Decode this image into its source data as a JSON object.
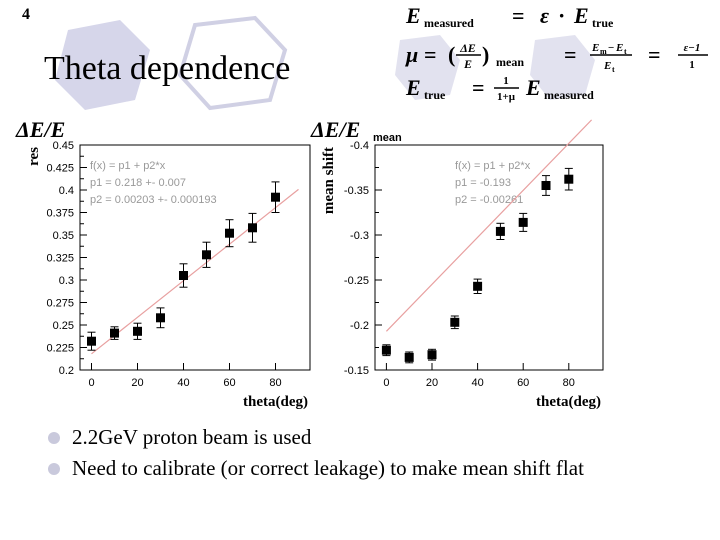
{
  "slide_number": "4",
  "title": "Theta dependence",
  "formulas": {
    "line1": {
      "lhs": "E",
      "lhs_sub": "measured",
      "eq": "=",
      "eps": "ε",
      "dot": "·",
      "rhs": "E",
      "rhs_sub": "true"
    },
    "line2": {
      "mu": "μ",
      "eq": "=",
      "paren_open": "(",
      "frac_num": "ΔE",
      "frac_den": "E",
      "paren_close": ")",
      "sub_mean": "mean",
      "eq2": "=",
      "frac2_num": "E",
      "frac2_num_sub1": "m",
      "frac2_minus": "−",
      "frac2_num2": "E",
      "frac2_num_sub2": "t",
      "frac2_den": "E",
      "frac2_den_sub": "t",
      "eq3": "=",
      "frac3_num": "ε−1",
      "frac3_den": "1"
    },
    "line3": {
      "lhs": "E",
      "lhs_sub": "true",
      "eq": "=",
      "frac_num": "1",
      "frac_den": "1+μ",
      "rhs": "E",
      "rhs_sub": "measured"
    }
  },
  "chart_data": [
    {
      "type": "scatter",
      "title": "ΔE/E",
      "title_sub": "",
      "xlabel": "theta(deg)",
      "ylabel": "res",
      "xlim": [
        -5,
        95
      ],
      "ylim": [
        0.2,
        0.45
      ],
      "xticks": [
        "0",
        "20",
        "40",
        "60",
        "80"
      ],
      "yticks": [
        "0.2",
        "0.225",
        "0.25",
        "0.275",
        "0.3",
        "0.325",
        "0.35",
        "0.375",
        "0.4",
        "0.425",
        "0.45"
      ],
      "fit_text": [
        "f(x) = p1 + p2*x",
        "p1 = 0.218 +- 0.007",
        "p2 = 0.00203 +- 0.000193"
      ],
      "fit": {
        "p1": 0.218,
        "p2": 0.00203,
        "color": "#e8a0a0"
      },
      "points": [
        {
          "x": 0,
          "y": 0.232,
          "err": 0.01
        },
        {
          "x": 10,
          "y": 0.241,
          "err": 0.007
        },
        {
          "x": 20,
          "y": 0.243,
          "err": 0.009
        },
        {
          "x": 30,
          "y": 0.258,
          "err": 0.011
        },
        {
          "x": 40,
          "y": 0.305,
          "err": 0.013
        },
        {
          "x": 50,
          "y": 0.328,
          "err": 0.014
        },
        {
          "x": 60,
          "y": 0.352,
          "err": 0.015
        },
        {
          "x": 70,
          "y": 0.358,
          "err": 0.016
        },
        {
          "x": 80,
          "y": 0.392,
          "err": 0.017
        }
      ]
    },
    {
      "type": "scatter",
      "title": "ΔE/E",
      "title_sub": "mean",
      "xlabel": "theta(deg)",
      "ylabel": "mean shift",
      "xlim": [
        -5,
        95
      ],
      "ylim": [
        -0.4,
        -0.15
      ],
      "y_inverted": true,
      "xticks": [
        "0",
        "20",
        "40",
        "60",
        "80"
      ],
      "yticks": [
        "-0.15",
        "-0.2",
        "-0.25",
        "-0.3",
        "-0.35",
        "-0.4"
      ],
      "fit_text": [
        "f(x) = p1 + p2*x",
        "p1 = -0.193",
        "p2 = -0.00261"
      ],
      "fit": {
        "p1": -0.193,
        "p2": -0.00261,
        "color": "#e8a0a0"
      },
      "points": [
        {
          "x": 0,
          "y": -0.172,
          "err": 0.006
        },
        {
          "x": 10,
          "y": -0.164,
          "err": 0.006
        },
        {
          "x": 20,
          "y": -0.167,
          "err": 0.006
        },
        {
          "x": 30,
          "y": -0.203,
          "err": 0.007
        },
        {
          "x": 40,
          "y": -0.243,
          "err": 0.008
        },
        {
          "x": 50,
          "y": -0.304,
          "err": 0.009
        },
        {
          "x": 60,
          "y": -0.314,
          "err": 0.01
        },
        {
          "x": 70,
          "y": -0.355,
          "err": 0.011
        },
        {
          "x": 80,
          "y": -0.362,
          "err": 0.012
        }
      ]
    }
  ],
  "bullets": [
    "2.2GeV proton beam is used",
    "Need to calibrate (or correct leakage) to make mean shift flat"
  ],
  "colors": {
    "hex_fill": "#d6d6ea",
    "hex_outline": "#d0d0e4",
    "bullet": "#c9c9dc",
    "fit_line": "#e8a0a0"
  }
}
